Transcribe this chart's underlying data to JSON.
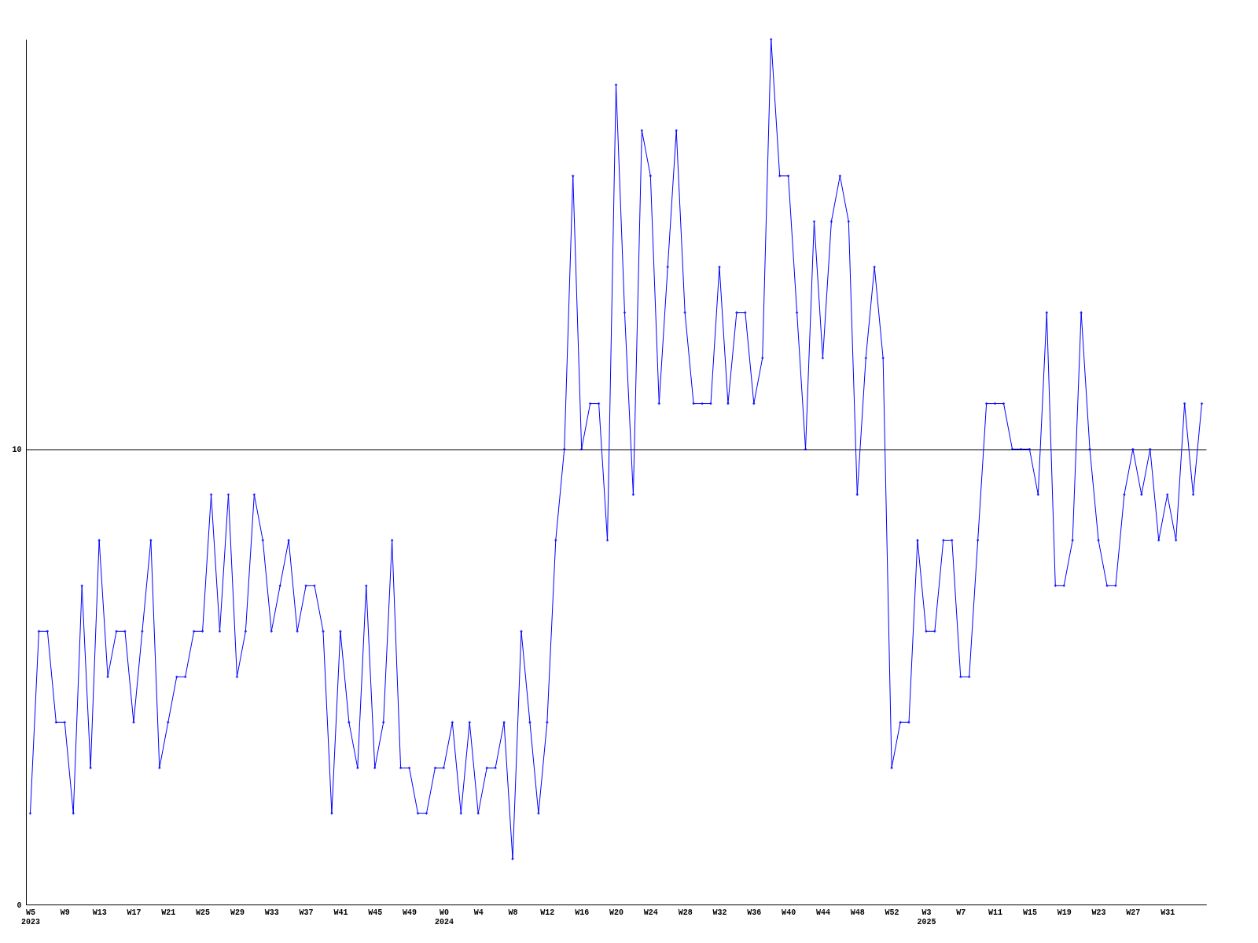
{
  "chart_data": {
    "type": "line",
    "categories": [
      "W5\n2023",
      null,
      null,
      null,
      "W9",
      null,
      null,
      null,
      "W13",
      null,
      null,
      null,
      "W17",
      null,
      null,
      null,
      "W21",
      null,
      null,
      null,
      "W25",
      null,
      null,
      null,
      "W29",
      null,
      null,
      null,
      "W33",
      null,
      null,
      null,
      "W37",
      null,
      null,
      null,
      "W41",
      null,
      null,
      null,
      "W45",
      null,
      null,
      null,
      "W49",
      null,
      null,
      null,
      "W0\n2024",
      null,
      null,
      null,
      "W4",
      null,
      null,
      null,
      "W8",
      null,
      null,
      null,
      "W12",
      null,
      null,
      null,
      "W16",
      null,
      null,
      null,
      "W20",
      null,
      null,
      null,
      "W24",
      null,
      null,
      null,
      "W28",
      null,
      null,
      null,
      "W32",
      null,
      null,
      null,
      "W36",
      null,
      null,
      null,
      "W40",
      null,
      null,
      null,
      "W44",
      null,
      null,
      null,
      "W48",
      null,
      null,
      null,
      "W52",
      null,
      null,
      null,
      "W3\n2025",
      null,
      null,
      null,
      "W7",
      null,
      null,
      null,
      "W11",
      null,
      null,
      null,
      "W15",
      null,
      null,
      null,
      "W19",
      null,
      null,
      null,
      "W23",
      null,
      null,
      null,
      "W27",
      null,
      null,
      null,
      "W31",
      null,
      null,
      null,
      null
    ],
    "series": [
      {
        "color": "#0000ff",
        "values": [
          2,
          6,
          6,
          4,
          4,
          2,
          7,
          3,
          8,
          5,
          6,
          6,
          4,
          6,
          8,
          3,
          4,
          5,
          5,
          6,
          6,
          9,
          6,
          9,
          5,
          6,
          9,
          8,
          6,
          7,
          8,
          6,
          7,
          7,
          6,
          2,
          6,
          4,
          3,
          7,
          3,
          4,
          8,
          3,
          3,
          2,
          2,
          3,
          3,
          4,
          2,
          4,
          2,
          3,
          3,
          4,
          1,
          6,
          4,
          2,
          4,
          8,
          10,
          16,
          10,
          11,
          11,
          8,
          18,
          13,
          9,
          17,
          16,
          11,
          14,
          17,
          13,
          11,
          11,
          11,
          14,
          11,
          13,
          13,
          11,
          12,
          19,
          16,
          16,
          13,
          10,
          15,
          12,
          15,
          16,
          15,
          9,
          12,
          14,
          12,
          3,
          4,
          4,
          8,
          6,
          6,
          8,
          8,
          5,
          5,
          8,
          11,
          11,
          11,
          10,
          10,
          10,
          9,
          13,
          7,
          7,
          8,
          13,
          10,
          8,
          7,
          7,
          9,
          10,
          9,
          10,
          8,
          9,
          8,
          11,
          9,
          11
        ]
      }
    ],
    "ylim": [
      0,
      19
    ],
    "yticks": [
      0,
      10
    ],
    "grid": "y",
    "marker": "diamond",
    "line_style": "solid"
  }
}
